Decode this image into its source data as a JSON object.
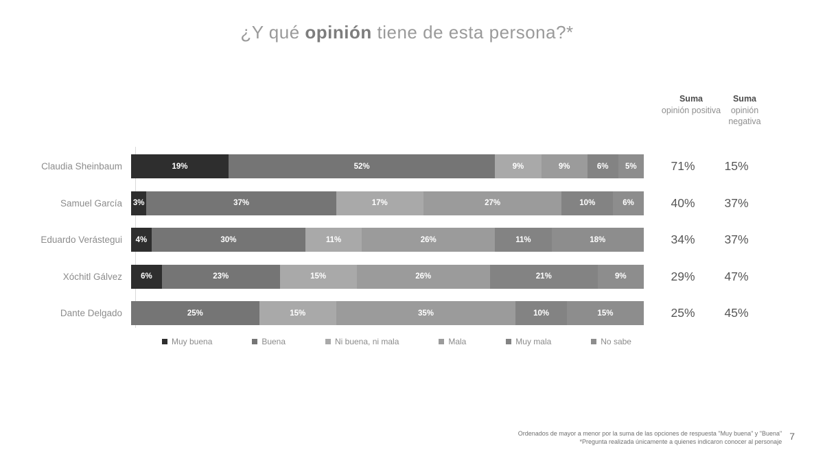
{
  "title": {
    "prefix": "¿Y qué ",
    "bold": "opinión",
    "suffix": " tiene de esta persona?*"
  },
  "sum_headers": {
    "positive": {
      "title": "Suma",
      "subtitle": "opinión positiva"
    },
    "negative": {
      "title": "Suma",
      "subtitle": "opinión negativa"
    }
  },
  "chart_data": {
    "type": "bar",
    "stacked": true,
    "orientation": "horizontal",
    "unit": "%",
    "xlim": [
      0,
      100
    ],
    "series_labels": [
      "Muy buena",
      "Buena",
      "Ni buena, ni mala",
      "Mala",
      "Muy mala",
      "No sabe"
    ],
    "series_colors": [
      "#2e2e2e",
      "#757575",
      "#a9a9a9",
      "#9b9b9b",
      "#838383",
      "#8d8d8d"
    ],
    "rows": [
      {
        "name": "Claudia Sheinbaum",
        "values": [
          19,
          52,
          9,
          9,
          6,
          5
        ],
        "suma_positiva": "71%",
        "suma_negativa": "15%"
      },
      {
        "name": "Samuel García",
        "values": [
          3,
          37,
          17,
          27,
          10,
          6
        ],
        "suma_positiva": "40%",
        "suma_negativa": "37%"
      },
      {
        "name": "Eduardo Verástegui",
        "values": [
          4,
          30,
          11,
          26,
          11,
          18
        ],
        "suma_positiva": "34%",
        "suma_negativa": "37%"
      },
      {
        "name": "Xóchitl Gálvez",
        "values": [
          6,
          23,
          15,
          26,
          21,
          9
        ],
        "suma_positiva": "29%",
        "suma_negativa": "47%"
      },
      {
        "name": "Dante Delgado",
        "values": [
          0,
          25,
          15,
          35,
          10,
          15
        ],
        "suma_positiva": "25%",
        "suma_negativa": "45%"
      }
    ]
  },
  "footer": {
    "line1": "Ordenados de mayor a menor por la suma de las opciones de respuesta \"Muy buena\" y \"Buena\"",
    "line2": "*Pregunta realizada únicamente a quienes indicaron conocer al personaje",
    "page_number": "7"
  }
}
